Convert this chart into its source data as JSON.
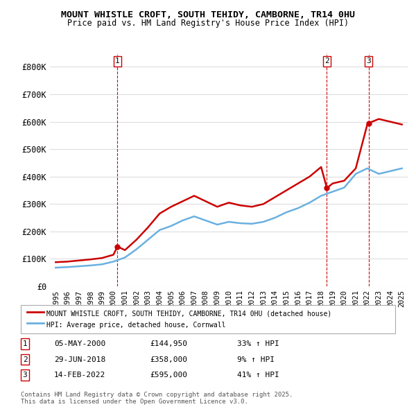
{
  "title": "MOUNT WHISTLE CROFT, SOUTH TEHIDY, CAMBORNE, TR14 0HU",
  "subtitle": "Price paid vs. HM Land Registry's House Price Index (HPI)",
  "legend_line1": "MOUNT WHISTLE CROFT, SOUTH TEHIDY, CAMBORNE, TR14 0HU (detached house)",
  "legend_line2": "HPI: Average price, detached house, Cornwall",
  "footer": "Contains HM Land Registry data © Crown copyright and database right 2025.\nThis data is licensed under the Open Government Licence v3.0.",
  "transactions": [
    {
      "num": 1,
      "date": "05-MAY-2000",
      "price": 144950,
      "year": 2000.35,
      "pct": "33% ↑ HPI"
    },
    {
      "num": 2,
      "date": "29-JUN-2018",
      "price": 358000,
      "year": 2018.5,
      "pct": "9% ↑ HPI"
    },
    {
      "num": 3,
      "date": "14-FEB-2022",
      "price": 595000,
      "year": 2022.12,
      "pct": "41% ↑ HPI"
    }
  ],
  "hpi_color": "#6ab0e0",
  "price_color": "#cc0000",
  "grid_color": "#dddddd",
  "background_color": "#ffffff",
  "ylim": [
    0,
    850000
  ],
  "yticks": [
    0,
    100000,
    200000,
    300000,
    400000,
    500000,
    600000,
    700000,
    800000
  ],
  "xlim": [
    1994.5,
    2025.5
  ],
  "hpi_data_x": [
    1995,
    1996,
    1997,
    1998,
    1999,
    2000,
    2001,
    2002,
    2003,
    2004,
    2005,
    2006,
    2007,
    2008,
    2009,
    2010,
    2011,
    2012,
    2013,
    2014,
    2015,
    2016,
    2017,
    2018,
    2019,
    2020,
    2021,
    2022,
    2023,
    2024,
    2025
  ],
  "hpi_data_y": [
    68000,
    70000,
    73000,
    76000,
    80000,
    90000,
    105000,
    135000,
    170000,
    205000,
    220000,
    240000,
    255000,
    240000,
    225000,
    235000,
    230000,
    228000,
    235000,
    250000,
    270000,
    285000,
    305000,
    330000,
    345000,
    360000,
    410000,
    430000,
    410000,
    420000,
    430000
  ],
  "price_data_x": [
    1995,
    1996,
    1997,
    1998,
    1999,
    2000,
    2000.35,
    2001,
    2002,
    2003,
    2004,
    2005,
    2006,
    2007,
    2008,
    2009,
    2010,
    2011,
    2012,
    2013,
    2014,
    2015,
    2016,
    2017,
    2018,
    2018.5,
    2019,
    2020,
    2021,
    2022,
    2022.12,
    2023,
    2024,
    2025
  ],
  "price_data_y": [
    88000,
    90000,
    94000,
    98000,
    103000,
    115000,
    144950,
    132000,
    170000,
    215000,
    265000,
    290000,
    310000,
    330000,
    310000,
    290000,
    305000,
    295000,
    290000,
    300000,
    325000,
    350000,
    375000,
    400000,
    435000,
    358000,
    375000,
    385000,
    430000,
    590000,
    595000,
    610000,
    600000,
    590000
  ],
  "vline_years": [
    2000.35,
    2018.5,
    2022.12
  ],
  "vline_color": "#cc0000"
}
